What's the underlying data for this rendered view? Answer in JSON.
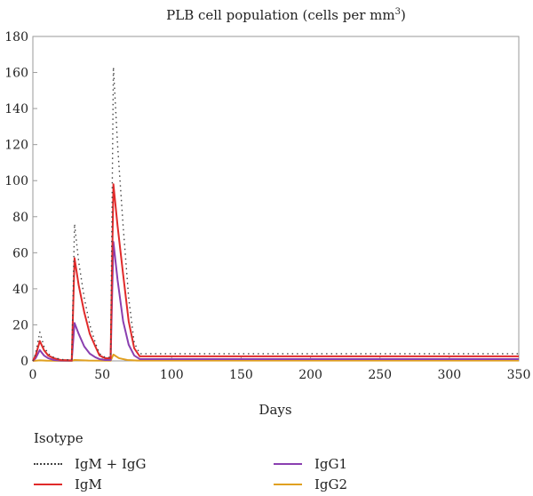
{
  "chart_data": {
    "type": "line",
    "title": "PLB cell population (cells per mm",
    "title_superscript": "3",
    "title_suffix": ")",
    "xlabel": "Days",
    "ylabel": "",
    "xlim": [
      0,
      350
    ],
    "ylim": [
      0,
      180
    ],
    "xticks": [
      0,
      50,
      100,
      150,
      200,
      250,
      300,
      350
    ],
    "yticks": [
      0,
      20,
      40,
      60,
      80,
      100,
      120,
      140,
      160,
      180
    ],
    "grid": false,
    "legend_title": "Isotype",
    "legend_placement": "bottom",
    "series": [
      {
        "name": "IgM + IgG",
        "color": "#444444",
        "style": "dotted",
        "points": [
          [
            0,
            0
          ],
          [
            2,
            4
          ],
          [
            5,
            16
          ],
          [
            8,
            8
          ],
          [
            11,
            4
          ],
          [
            15,
            2
          ],
          [
            20,
            0.8
          ],
          [
            28,
            0.5
          ],
          [
            30,
            76
          ],
          [
            33,
            55
          ],
          [
            37,
            35
          ],
          [
            41,
            20
          ],
          [
            45,
            10
          ],
          [
            48,
            4
          ],
          [
            52,
            2
          ],
          [
            56,
            2
          ],
          [
            58,
            163
          ],
          [
            61,
            120
          ],
          [
            65,
            75
          ],
          [
            69,
            35
          ],
          [
            73,
            10
          ],
          [
            77,
            4
          ],
          [
            350,
            4
          ]
        ]
      },
      {
        "name": "IgM",
        "color": "#e02a2a",
        "style": "solid",
        "points": [
          [
            0,
            0
          ],
          [
            2,
            3
          ],
          [
            5,
            11
          ],
          [
            8,
            6
          ],
          [
            11,
            3
          ],
          [
            15,
            1.5
          ],
          [
            20,
            0.5
          ],
          [
            28,
            0.3
          ],
          [
            30,
            57
          ],
          [
            33,
            42
          ],
          [
            37,
            27
          ],
          [
            41,
            15
          ],
          [
            45,
            8
          ],
          [
            48,
            3
          ],
          [
            52,
            1.5
          ],
          [
            56,
            1.5
          ],
          [
            58,
            98
          ],
          [
            61,
            75
          ],
          [
            65,
            48
          ],
          [
            69,
            22
          ],
          [
            73,
            7
          ],
          [
            77,
            2.5
          ],
          [
            350,
            2.5
          ]
        ]
      },
      {
        "name": "IgG1",
        "color": "#8a3fb0",
        "style": "solid",
        "points": [
          [
            0,
            0
          ],
          [
            2,
            1.5
          ],
          [
            5,
            6
          ],
          [
            8,
            3
          ],
          [
            11,
            1.5
          ],
          [
            15,
            0.5
          ],
          [
            20,
            0.2
          ],
          [
            28,
            0.1
          ],
          [
            30,
            21
          ],
          [
            33,
            15
          ],
          [
            37,
            8
          ],
          [
            41,
            4
          ],
          [
            45,
            2
          ],
          [
            48,
            1
          ],
          [
            52,
            0.5
          ],
          [
            56,
            0.5
          ],
          [
            58,
            66
          ],
          [
            61,
            45
          ],
          [
            65,
            22
          ],
          [
            69,
            9
          ],
          [
            73,
            3
          ],
          [
            77,
            1
          ],
          [
            350,
            1
          ]
        ]
      },
      {
        "name": "IgG2",
        "color": "#e0a020",
        "style": "solid",
        "points": [
          [
            0,
            0
          ],
          [
            5,
            0.3
          ],
          [
            10,
            0.1
          ],
          [
            28,
            0
          ],
          [
            30,
            0.5
          ],
          [
            40,
            0.2
          ],
          [
            56,
            0.1
          ],
          [
            58,
            3.5
          ],
          [
            62,
            1.5
          ],
          [
            68,
            0.5
          ],
          [
            75,
            0.2
          ],
          [
            350,
            0.2
          ]
        ]
      }
    ]
  }
}
